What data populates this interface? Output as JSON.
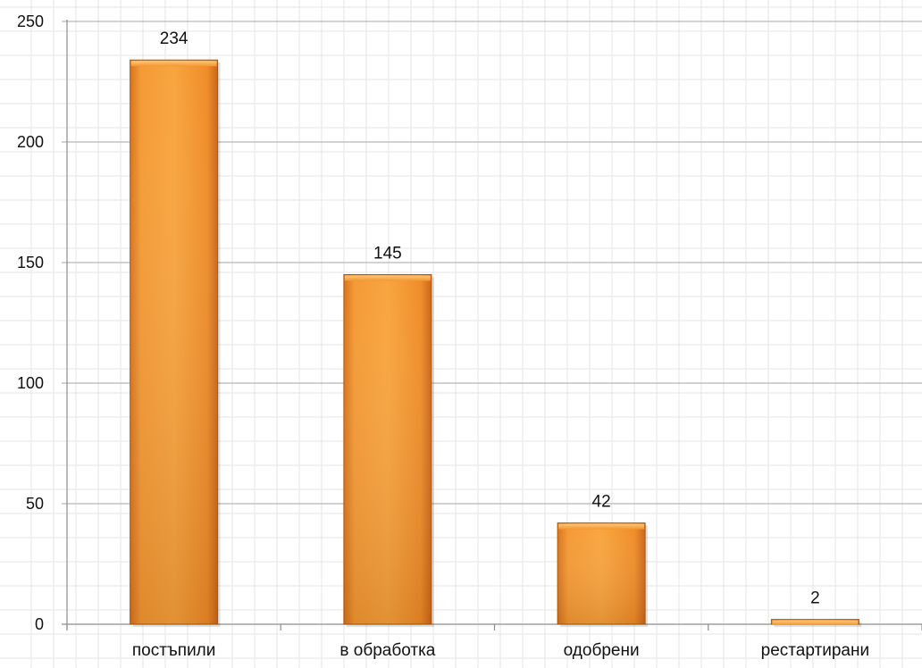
{
  "chart_data": {
    "type": "bar",
    "categories": [
      "постъпили",
      "в обработка",
      "одобрени",
      "рестартирани"
    ],
    "values": [
      234,
      145,
      42,
      2
    ],
    "title": "",
    "xlabel": "",
    "ylabel": "",
    "ylim": [
      0,
      250
    ],
    "yticks": [
      0,
      50,
      100,
      150,
      200,
      250
    ],
    "grid": true,
    "legend": "none",
    "colors": {
      "bar_light": "#f8a33c",
      "bar_mid": "#ee8a22",
      "bar_dark": "#d8701a",
      "bar_edge": "#a9560f",
      "major_grid": "#a6a6a6",
      "minor_grid": "#e6e6e6",
      "axis": "#8c8c8c"
    }
  }
}
